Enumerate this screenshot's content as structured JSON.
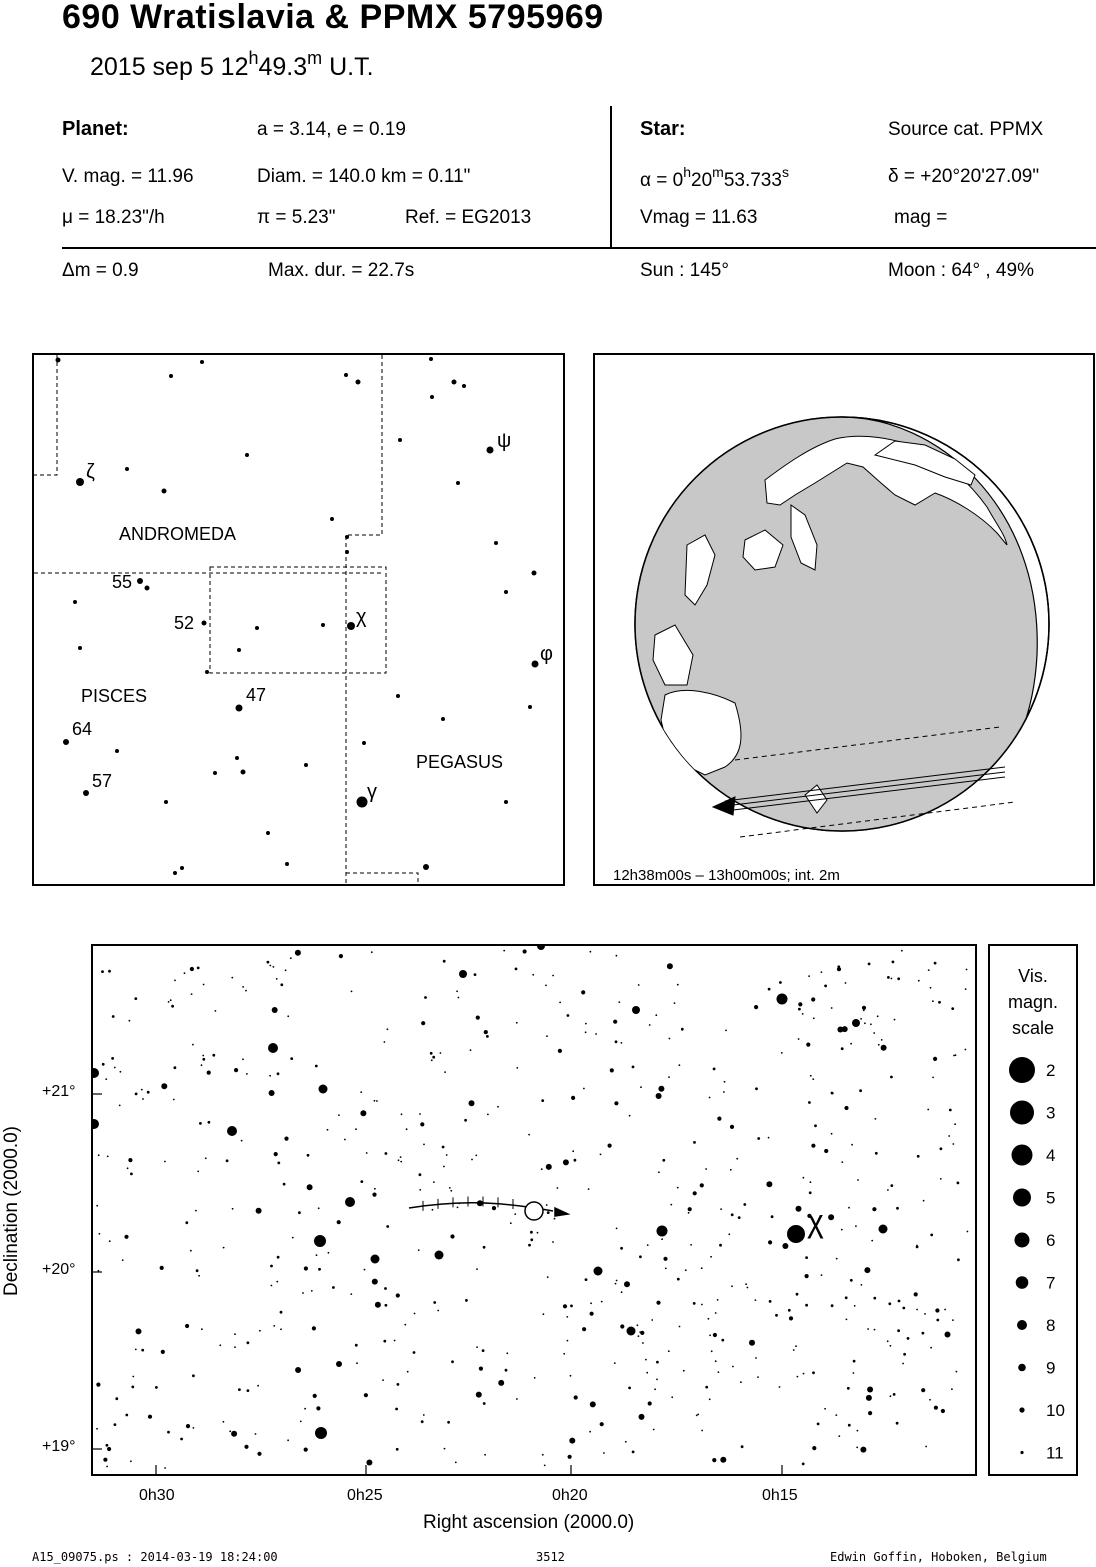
{
  "header": {
    "title": "690 Wratislavia  &  PPMX 5795969",
    "date": "2015 sep  5  12",
    "time_h_sup": "h",
    "time_min": "49.3",
    "time_m_sup": "m",
    "time_ut": " U.T."
  },
  "planet": {
    "label": "Planet:",
    "orbit": "a = 3.14, e = 0.19",
    "vmag": "V. mag. = 11.96",
    "diam": "Diam. = 140.0 km = 0.11\"",
    "mu": "μ =  18.23\"/h",
    "pi": "π =  5.23\"",
    "ref": "Ref. = EG2013"
  },
  "star": {
    "label": "Star:",
    "source": "Source cat.  PPMX",
    "alpha_prefix": "α =  0",
    "alpha_h": "h",
    "alpha_20": "20",
    "alpha_m": "m",
    "alpha_sec": "53.733",
    "alpha_s": "s",
    "delta": "δ = +20°20'27.09\"",
    "vmag": "Vmag = 11.63",
    "mag": "mag ="
  },
  "event": {
    "dm": "Δm = 0.9",
    "maxdur": "Max. dur. = 22.7s",
    "sun": "Sun : 145°",
    "moon": "Moon :  64° , 49%"
  },
  "constellation_map": {
    "constellations": [
      "ANDROMEDA",
      "PISCES",
      "PEGASUS"
    ],
    "greek_labels": [
      "ζ",
      "ψ",
      "χ",
      "φ",
      "γ"
    ],
    "number_labels": [
      "55",
      "52",
      "47",
      "64",
      "57"
    ]
  },
  "globe": {
    "caption": "12h38m00s – 13h00m00s; int.  2m"
  },
  "star_chart": {
    "ra_ticks": [
      "0h30",
      "0h25",
      "0h20",
      "0h15"
    ],
    "dec_ticks": [
      "+21°",
      "+20°",
      "+19°"
    ],
    "xlabel": "Right ascension (2000.0)",
    "ylabel": "Declination (2000.0)",
    "target_label": "χ"
  },
  "magnitude_scale": {
    "title_lines": [
      "Vis.",
      "magn.",
      "scale"
    ],
    "magnitudes": [
      "2",
      "3",
      "4",
      "5",
      "6",
      "7",
      "8",
      "9",
      "10",
      "11"
    ]
  },
  "footer": {
    "file": "A15_09075.ps : 2014-03-19 18:24:00",
    "number": "3512",
    "author": "Edwin Goffin, Hoboken, Belgium"
  }
}
